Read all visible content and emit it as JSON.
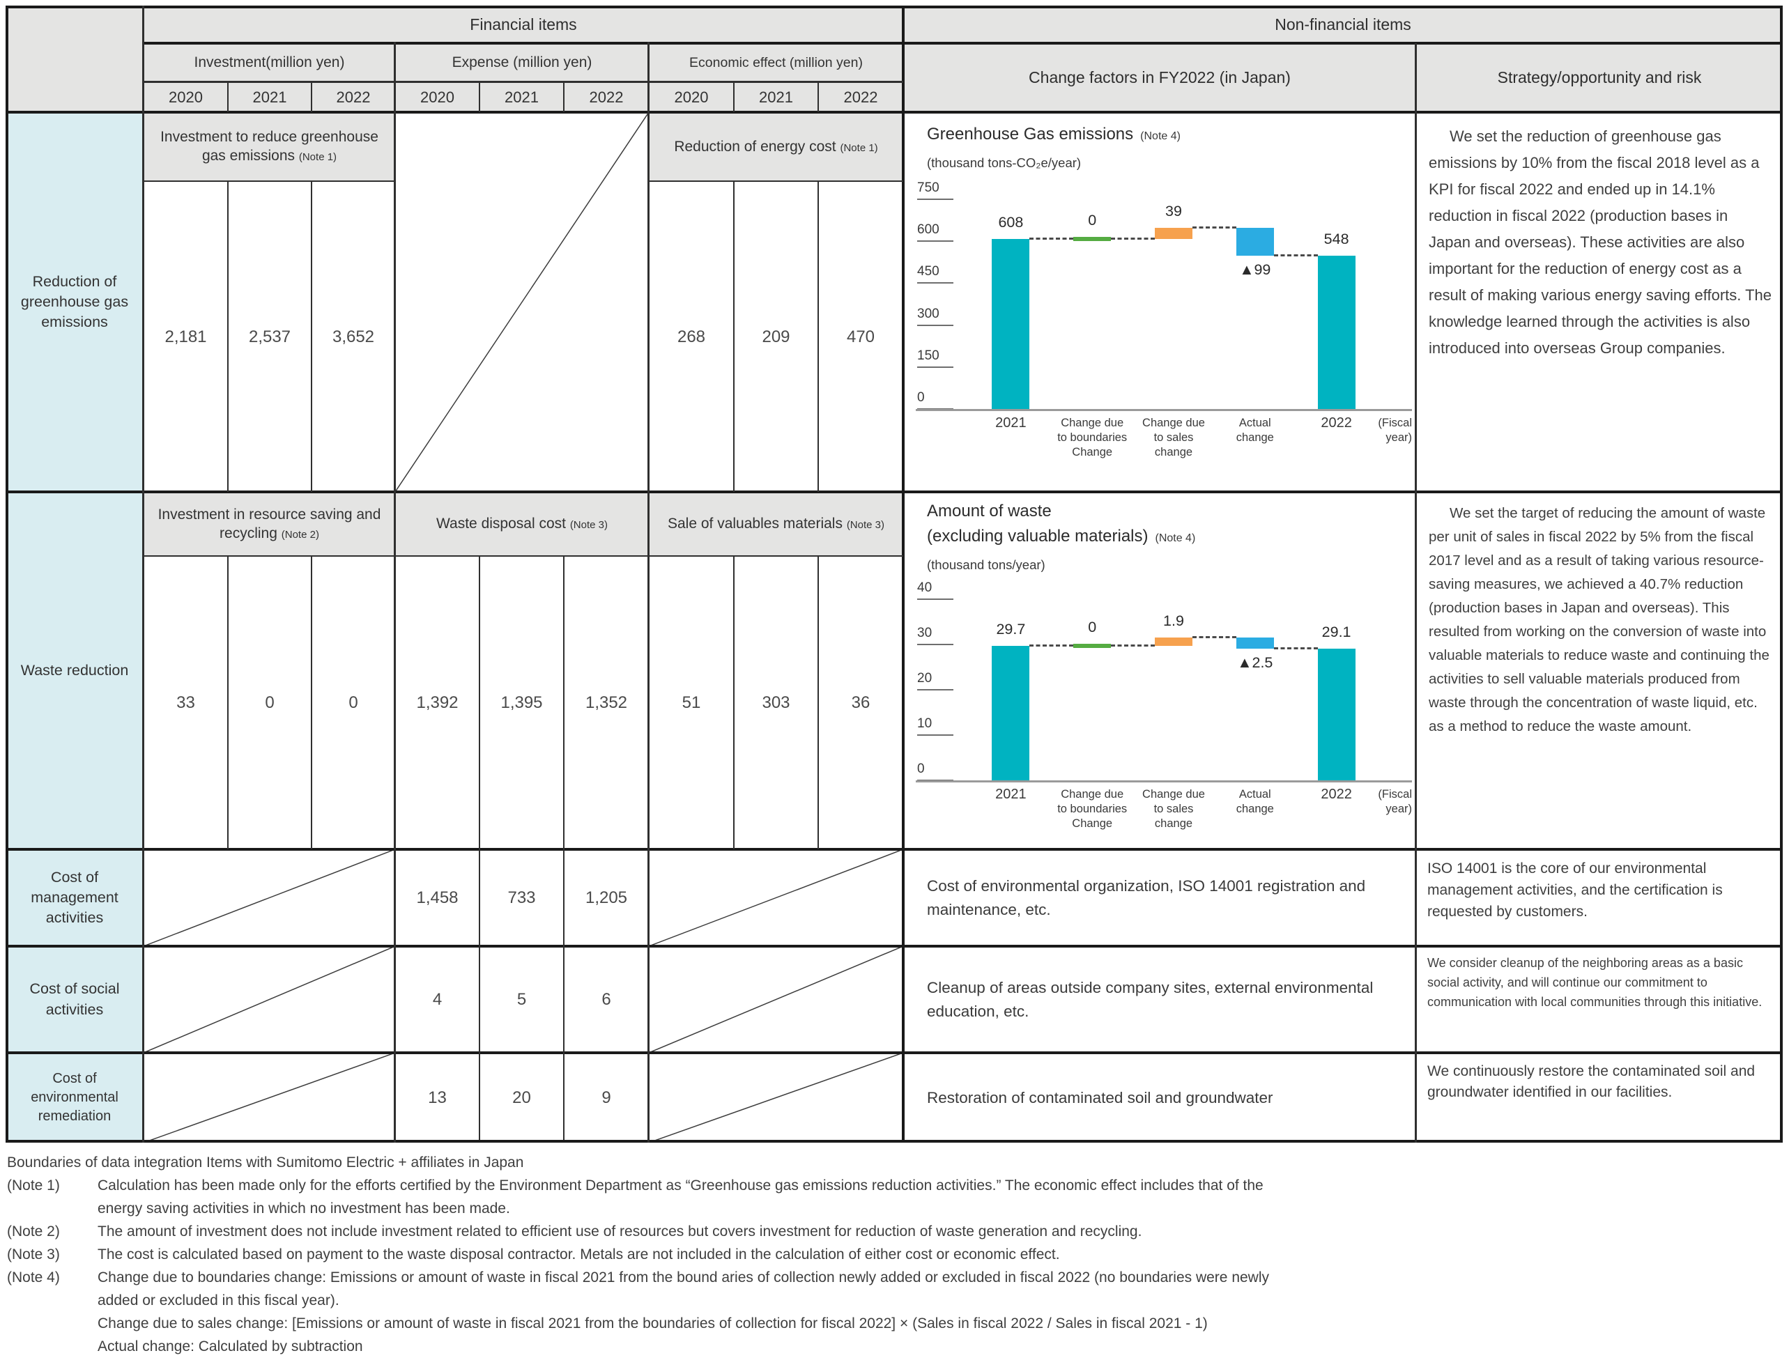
{
  "header": {
    "financial": "Financial items",
    "non_financial": "Non-financial items",
    "col_groups": [
      "Investment(million yen)",
      "Expense (million yen)",
      "Economic effect (million yen)"
    ],
    "years": [
      "2020",
      "2021",
      "2022"
    ],
    "change_factors": "Change factors in FY2022 (in Japan)",
    "strategy": "Strategy/opportunity and risk"
  },
  "rows": [
    {
      "label": "Reduction of greenhouse gas emissions",
      "investment": {
        "title": "Investment to reduce greenhouse gas emissions",
        "note": "(Note 1)",
        "values": [
          "2,181",
          "2,537",
          "3,652"
        ]
      },
      "economic": {
        "title": "Reduction of energy cost",
        "note": "(Note 1)",
        "values": [
          "268",
          "209",
          "470"
        ]
      },
      "strategy": "We set the reduction of greenhouse gas emissions by 10% from the fiscal 2018 level as a KPI for fiscal 2022 and ended up in 14.1% reduction in fiscal 2022 (production bases in Japan and overseas). These activities are also important for the reduction of energy cost as a result of making various energy saving efforts. The knowledge learned through the activities is also introduced into overseas Group companies."
    },
    {
      "label": "Waste reduction",
      "investment": {
        "title": "Investment in resource saving and recycling",
        "note": "(Note 2)",
        "values": [
          "33",
          "0",
          "0"
        ]
      },
      "expense": {
        "title": "Waste disposal cost",
        "note": "(Note 3)",
        "values": [
          "1,392",
          "1,395",
          "1,352"
        ]
      },
      "economic": {
        "title": "Sale of valuables materials",
        "note": "(Note 3)",
        "values": [
          "51",
          "303",
          "36"
        ]
      },
      "strategy": "We set the target of reducing the amount of waste per unit of sales in fiscal 2022 by 5% from the fiscal 2017 level and as a result of taking various resource-saving measures, we achieved a 40.7% reduction (production bases in Japan and overseas). This resulted from working on the conversion of waste into valuable materials to reduce waste and continuing the activities to sell valuable materials produced from waste through the concentration of waste liquid, etc. as a method to reduce the waste amount."
    },
    {
      "label": "Cost of management activities",
      "expense": {
        "values": [
          "1,458",
          "733",
          "1,205"
        ]
      },
      "change_factor": "Cost of environmental organization, ISO 14001 registration and maintenance, etc.",
      "strategy": "ISO 14001 is the core of our environmental management activities, and the certification is requested by customers."
    },
    {
      "label": "Cost of social activities",
      "expense": {
        "values": [
          "4",
          "5",
          "6"
        ]
      },
      "change_factor": "Cleanup of areas outside company sites, external environmental education, etc.",
      "strategy": "We consider cleanup of the neighboring areas as a basic social activity, and will continue our commitment to communication with local communities through this initiative."
    },
    {
      "label": "Cost of environmental remediation",
      "expense": {
        "values": [
          "13",
          "20",
          "9"
        ]
      },
      "change_factor": "Restoration of contaminated soil and groundwater",
      "strategy": "We continuously restore the contaminated soil and groundwater identified in our facilities."
    }
  ],
  "colors": {
    "teal": "#00b3c1",
    "green": "#55ac42",
    "orange": "#f6a14e",
    "blue": "#2bace2",
    "header_bg": "#e4e4e3",
    "row_label_bg": "#d9edf1",
    "border": "#1a1a1a"
  },
  "chart_data": [
    {
      "type": "bar",
      "subtype": "waterfall",
      "title": "Greenhouse Gas emissions",
      "title_note": "(Note 4)",
      "unit": "(thousand tons-CO₂e/year)",
      "fiscal_label": "(Fiscal\nyear)",
      "ylim": [
        0,
        750
      ],
      "yticks": [
        750,
        600,
        450,
        300,
        150,
        0
      ],
      "categories": [
        "2021",
        "Change due\nto boundaries\nChange",
        "Change due\nto sales\nchange",
        "Actual\nchange",
        "2022"
      ],
      "bars": [
        {
          "kind": "total",
          "value": 608,
          "label": "608",
          "color": "teal"
        },
        {
          "kind": "delta",
          "value": 0,
          "label": "0",
          "color": "green"
        },
        {
          "kind": "delta",
          "value": 39,
          "label": "39",
          "color": "orange"
        },
        {
          "kind": "delta",
          "value": -99,
          "label": "▲99",
          "color": "blue"
        },
        {
          "kind": "total",
          "value": 548,
          "label": "548",
          "color": "teal"
        }
      ]
    },
    {
      "type": "bar",
      "subtype": "waterfall",
      "title": "Amount of waste",
      "title2": "(excluding valuable materials)",
      "title_note": "(Note 4)",
      "unit": "(thousand tons/year)",
      "fiscal_label": "(Fiscal\nyear)",
      "ylim": [
        0,
        40
      ],
      "yticks": [
        40,
        30,
        20,
        10,
        0
      ],
      "categories": [
        "2021",
        "Change due\nto boundaries\nChange",
        "Change due\nto sales\nchange",
        "Actual\nchange",
        "2022"
      ],
      "bars": [
        {
          "kind": "total",
          "value": 29.7,
          "label": "29.7",
          "color": "teal"
        },
        {
          "kind": "delta",
          "value": 0,
          "label": "0",
          "color": "green"
        },
        {
          "kind": "delta",
          "value": 1.9,
          "label": "1.9",
          "color": "orange"
        },
        {
          "kind": "delta",
          "value": -2.5,
          "label": "▲2.5",
          "color": "blue"
        },
        {
          "kind": "total",
          "value": 29.1,
          "label": "29.1",
          "color": "teal"
        }
      ]
    }
  ],
  "notes": [
    {
      "prefix": "",
      "text": "Boundaries of data integration Items with Sumitomo Electric + affiliates in Japan"
    },
    {
      "prefix": "(Note 1)",
      "text": "Calculation has been made only for the efforts certified by the Environment Department as “Greenhouse gas emissions reduction activities.” The economic effect includes that of the"
    },
    {
      "prefix": "",
      "text": "energy saving activities in which no investment has been made."
    },
    {
      "prefix": "(Note 2)",
      "text": "The amount of investment does not include investment related to efficient use of resources but covers investment for reduction of waste generation and recycling."
    },
    {
      "prefix": "(Note 3)",
      "text": "The cost is calculated based on payment to the waste disposal contractor. Metals are not included in the calculation of either cost or economic effect."
    },
    {
      "prefix": "(Note 4)",
      "text": "Change due to boundaries change: Emissions or amount of waste in fiscal 2021 from the bound aries of collection newly added or excluded in fiscal 2022 (no boundaries were newly"
    },
    {
      "prefix": "",
      "text": "added or excluded in this fiscal year)."
    },
    {
      "prefix": "",
      "text": "Change due to sales change: [Emissions or amount of waste in fiscal 2021 from the boundaries of collection for fiscal 2022] × (Sales in fiscal 2022 / Sales in fiscal 2021 - 1)"
    },
    {
      "prefix": "",
      "text": "Actual change: Calculated by subtraction"
    }
  ]
}
